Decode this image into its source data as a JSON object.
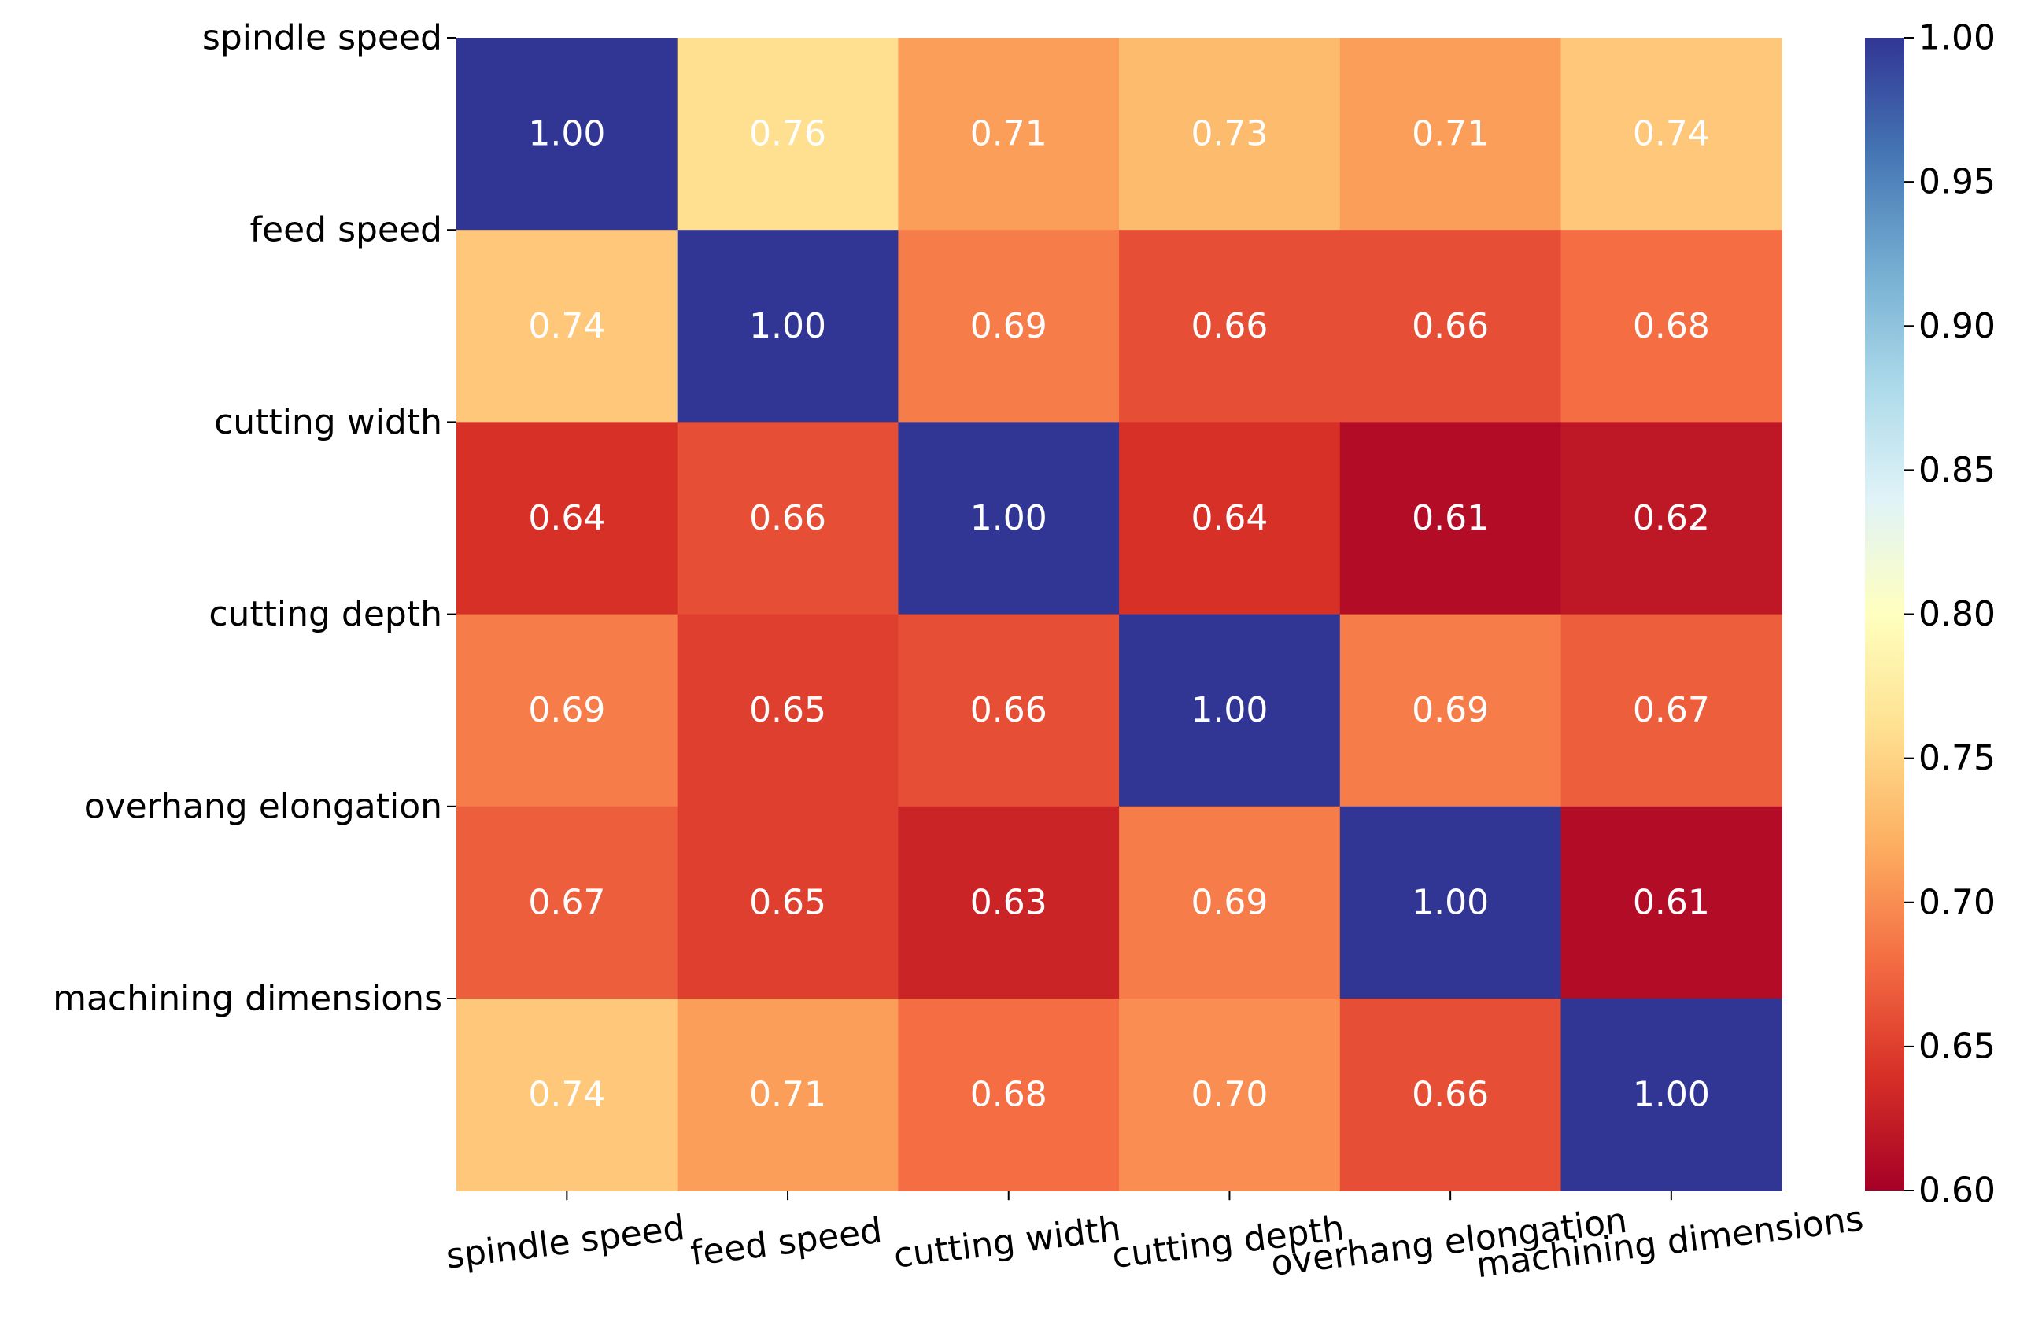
{
  "chart_data": {
    "type": "heatmap",
    "title": "",
    "xlabel": "",
    "ylabel": "",
    "x_categories": [
      "spindle speed",
      "feed speed",
      "cutting width",
      "cutting depth",
      "overhang elongation",
      "machining dimensions"
    ],
    "y_categories": [
      "spindle speed",
      "feed speed",
      "cutting width",
      "cutting depth",
      "overhang elongation",
      "machining dimensions"
    ],
    "values": [
      [
        1.0,
        0.76,
        0.71,
        0.73,
        0.71,
        0.74
      ],
      [
        0.74,
        1.0,
        0.69,
        0.66,
        0.66,
        0.68
      ],
      [
        0.64,
        0.66,
        1.0,
        0.64,
        0.61,
        0.62
      ],
      [
        0.69,
        0.65,
        0.66,
        1.0,
        0.69,
        0.67
      ],
      [
        0.67,
        0.65,
        0.63,
        0.69,
        1.0,
        0.61
      ],
      [
        0.74,
        0.71,
        0.68,
        0.7,
        0.66,
        1.0
      ]
    ],
    "annotation_format": "2 decimals",
    "colormap": "RdYlBu",
    "colorbar": {
      "range": [
        0.6,
        1.0
      ],
      "ticks": [
        "0.60",
        "0.65",
        "0.70",
        "0.75",
        "0.80",
        "0.85",
        "0.90",
        "0.95",
        "1.00"
      ],
      "position": "right"
    },
    "colors": {
      "low": "#a50026",
      "high": "#313695",
      "text": "#ffffff"
    }
  }
}
